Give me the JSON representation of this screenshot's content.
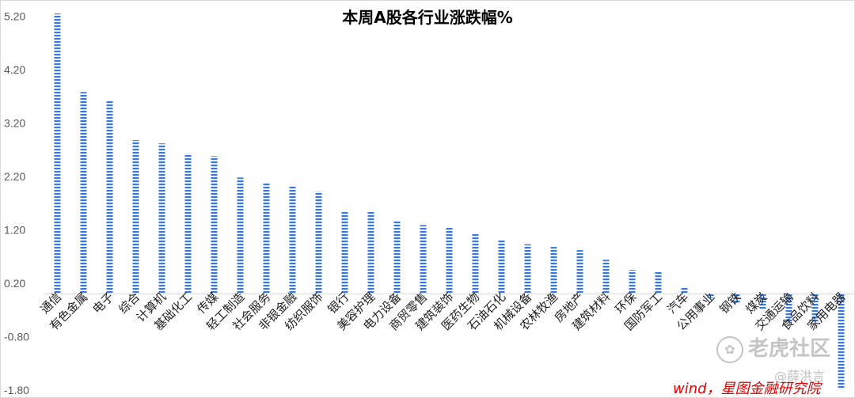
{
  "chart_data": {
    "type": "bar",
    "title": "本周A股各行业涨跌幅%",
    "categories": [
      "通信",
      "有色金属",
      "电子",
      "综合",
      "计算机",
      "基础化工",
      "传媒",
      "轻工制造",
      "社会服务",
      "非银金融",
      "纺织服饰",
      "银行",
      "美容护理",
      "电力设备",
      "商贸零售",
      "建筑装饰",
      "医药生物",
      "石油石化",
      "机械设备",
      "农林牧渔",
      "房地产",
      "建筑材料",
      "环保",
      "国防军工",
      "汽车",
      "公用事业",
      "钢铁",
      "煤炭",
      "交通运输",
      "食品饮料",
      "家用电器"
    ],
    "values": [
      5.25,
      3.78,
      3.62,
      2.88,
      2.82,
      2.63,
      2.58,
      2.18,
      2.08,
      2.01,
      1.92,
      1.55,
      1.55,
      1.38,
      1.29,
      1.25,
      1.13,
      1.02,
      0.93,
      0.88,
      0.82,
      0.64,
      0.45,
      0.42,
      0.13,
      -0.08,
      -0.18,
      -0.3,
      -0.52,
      -0.52,
      -1.78
    ],
    "yticks": [
      5.2,
      4.2,
      3.2,
      2.2,
      1.2,
      0.2,
      -0.8,
      -1.8
    ],
    "ytick_labels": [
      "5.20",
      "4.20",
      "3.20",
      "2.20",
      "1.20",
      "0.20",
      "-0.80",
      "-1.80"
    ],
    "ylim": [
      -1.8,
      5.4
    ],
    "grid": false,
    "legend": "none",
    "bar_color": "#3b78d8",
    "source": "wind，星图金融研究院"
  },
  "watermark": {
    "site": "老虎社区",
    "user": "@薛洪言"
  }
}
